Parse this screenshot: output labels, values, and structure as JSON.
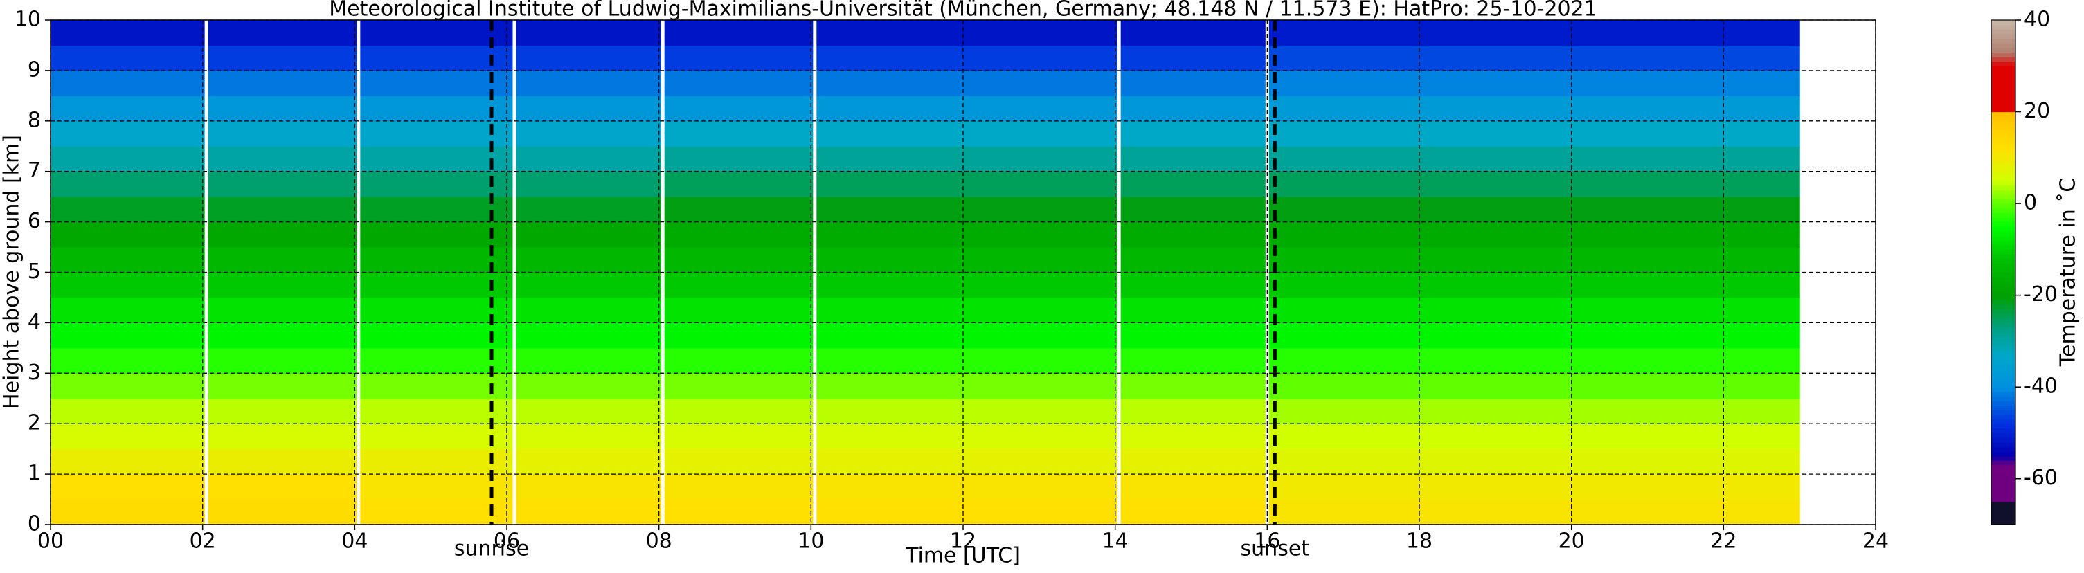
{
  "chart_data": {
    "type": "heatmap",
    "title": "Meteorological Institute of Ludwig-Maximilians-Universität (München, Germany; 48.148 N / 11.573 E):    HatPro: 25-10-2021",
    "xlabel": "Time [UTC]",
    "ylabel": "Height above ground [km]",
    "colorbar_label": "Temperature in ˚C",
    "xlim": [
      0,
      24
    ],
    "ylim": [
      0,
      10
    ],
    "xticks": [
      {
        "value": 0,
        "label": "00"
      },
      {
        "value": 2,
        "label": "02"
      },
      {
        "value": 4,
        "label": "04"
      },
      {
        "value": 6,
        "label": "06"
      },
      {
        "value": 8,
        "label": "08"
      },
      10,
      12,
      14,
      16,
      18,
      20,
      22,
      24
    ],
    "yticks": [
      0,
      1,
      2,
      3,
      4,
      5,
      6,
      7,
      8,
      9,
      10
    ],
    "grid": true,
    "x_bins": [
      0,
      2,
      4,
      6,
      8,
      10,
      12,
      14,
      16,
      18,
      20,
      22,
      23
    ],
    "y_bins": [
      0,
      0.5,
      1,
      1.5,
      2,
      2.5,
      3,
      3.5,
      4,
      4.5,
      5,
      5.5,
      6,
      6.5,
      7,
      7.5,
      8,
      8.5,
      9,
      9.5,
      10
    ],
    "values": [
      [
        13,
        13,
        12,
        12,
        12,
        12,
        12,
        12,
        11,
        11,
        11,
        11
      ],
      [
        12,
        12,
        11,
        11,
        11,
        11,
        11,
        11,
        10,
        10,
        10,
        10
      ],
      [
        9,
        9,
        9,
        8,
        8,
        8,
        8,
        8,
        7,
        7,
        7,
        7
      ],
      [
        6,
        6,
        6,
        6,
        6,
        6,
        6,
        6,
        5,
        5,
        5,
        5
      ],
      [
        4,
        4,
        4,
        4,
        4,
        4,
        4,
        4,
        3,
        3,
        3,
        3
      ],
      [
        1,
        1,
        1,
        1,
        1,
        1,
        1,
        1,
        0,
        0,
        0,
        0
      ],
      [
        -3,
        -3,
        -3,
        -3,
        -3,
        -3,
        -3,
        -3,
        -3,
        -3,
        -3,
        -3
      ],
      [
        -6,
        -6,
        -6,
        -6,
        -6,
        -6,
        -6,
        -6,
        -6,
        -6,
        -6,
        -6
      ],
      [
        -8,
        -8,
        -8,
        -8,
        -8,
        -8,
        -8,
        -8,
        -8,
        -8,
        -8,
        -8
      ],
      [
        -11,
        -11,
        -11,
        -11,
        -11,
        -11,
        -11,
        -11,
        -11,
        -11,
        -11,
        -11
      ],
      [
        -14,
        -14,
        -14,
        -14,
        -14,
        -14,
        -14,
        -14,
        -14,
        -14,
        -14,
        -14
      ],
      [
        -18,
        -18,
        -18,
        -18,
        -17,
        -17,
        -17,
        -17,
        -17,
        -17,
        -17,
        -17
      ],
      [
        -22,
        -22,
        -22,
        -22,
        -21,
        -21,
        -21,
        -21,
        -21,
        -21,
        -21,
        -21
      ],
      [
        -26,
        -26,
        -26,
        -26,
        -25,
        -25,
        -25,
        -25,
        -25,
        -25,
        -25,
        -25
      ],
      [
        -30,
        -30,
        -30,
        -30,
        -29,
        -29,
        -29,
        -29,
        -29,
        -29,
        -29,
        -29
      ],
      [
        -34,
        -34,
        -34,
        -34,
        -33,
        -33,
        -33,
        -33,
        -33,
        -33,
        -33,
        -33
      ],
      [
        -38,
        -38,
        -38,
        -38,
        -38,
        -38,
        -38,
        -38,
        -37,
        -37,
        -37,
        -37
      ],
      [
        -42,
        -42,
        -42,
        -42,
        -42,
        -42,
        -42,
        -42,
        -41,
        -41,
        -41,
        -41
      ],
      [
        -47,
        -47,
        -47,
        -47,
        -47,
        -47,
        -47,
        -47,
        -46,
        -46,
        -46,
        -46
      ],
      [
        -52,
        -52,
        -52,
        -52,
        -52,
        -52,
        -52,
        -52,
        -51,
        -51,
        -51,
        -51
      ]
    ],
    "data_gaps": [
      2.05,
      4.05,
      6.1,
      8.05,
      10.05,
      14.05,
      16.0
    ],
    "annotations": [
      {
        "x": 5.8,
        "label": "sunrise"
      },
      {
        "x": 16.1,
        "label": "sunset"
      }
    ],
    "colorbar_lim": [
      -70,
      40
    ],
    "colorbar_ticks": [
      -60,
      -40,
      -20,
      0,
      20,
      40
    ],
    "colorscale": [
      [
        -70,
        "#10102a"
      ],
      [
        -65,
        "#10102a"
      ],
      [
        -65,
        "#700080"
      ],
      [
        -57,
        "#700080"
      ],
      [
        -55,
        "#0000b0"
      ],
      [
        -48,
        "#0030e0"
      ],
      [
        -40,
        "#0090e0"
      ],
      [
        -33,
        "#00a8c8"
      ],
      [
        -27,
        "#00a080"
      ],
      [
        -20,
        "#00a000"
      ],
      [
        -12,
        "#00c000"
      ],
      [
        -5,
        "#00ff00"
      ],
      [
        0,
        "#60ff00"
      ],
      [
        5,
        "#d0ff00"
      ],
      [
        12,
        "#ffe000"
      ],
      [
        20,
        "#ffc000"
      ],
      [
        20,
        "#e00000"
      ],
      [
        30,
        "#e00000"
      ],
      [
        33,
        "#b08070"
      ],
      [
        40,
        "#c8b8a8"
      ]
    ]
  }
}
